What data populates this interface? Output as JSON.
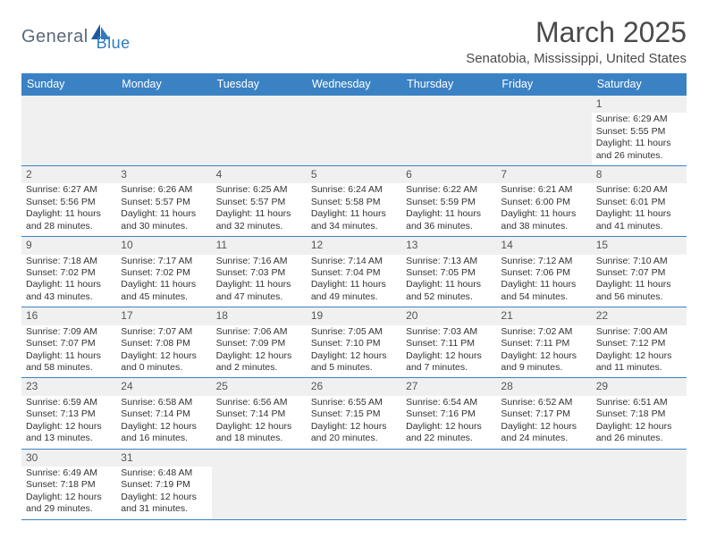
{
  "logo": {
    "text1": "General",
    "text2": "Blue"
  },
  "title": "March 2025",
  "location": "Senatobia, Mississippi, United States",
  "colors": {
    "header_bg": "#3b82c4",
    "header_text": "#ffffff",
    "border": "#3b82c4",
    "blank_bg": "#f0f0f0",
    "text": "#333333",
    "title_text": "#4a4a4a",
    "logo_gray": "#5a6a78",
    "logo_blue": "#2f7ac0"
  },
  "weekdays": [
    "Sunday",
    "Monday",
    "Tuesday",
    "Wednesday",
    "Thursday",
    "Friday",
    "Saturday"
  ],
  "weeks": [
    [
      null,
      null,
      null,
      null,
      null,
      null,
      {
        "n": "1",
        "sr": "6:29 AM",
        "ss": "5:55 PM",
        "dl": "11 hours and 26 minutes."
      }
    ],
    [
      {
        "n": "2",
        "sr": "6:27 AM",
        "ss": "5:56 PM",
        "dl": "11 hours and 28 minutes."
      },
      {
        "n": "3",
        "sr": "6:26 AM",
        "ss": "5:57 PM",
        "dl": "11 hours and 30 minutes."
      },
      {
        "n": "4",
        "sr": "6:25 AM",
        "ss": "5:57 PM",
        "dl": "11 hours and 32 minutes."
      },
      {
        "n": "5",
        "sr": "6:24 AM",
        "ss": "5:58 PM",
        "dl": "11 hours and 34 minutes."
      },
      {
        "n": "6",
        "sr": "6:22 AM",
        "ss": "5:59 PM",
        "dl": "11 hours and 36 minutes."
      },
      {
        "n": "7",
        "sr": "6:21 AM",
        "ss": "6:00 PM",
        "dl": "11 hours and 38 minutes."
      },
      {
        "n": "8",
        "sr": "6:20 AM",
        "ss": "6:01 PM",
        "dl": "11 hours and 41 minutes."
      }
    ],
    [
      {
        "n": "9",
        "sr": "7:18 AM",
        "ss": "7:02 PM",
        "dl": "11 hours and 43 minutes."
      },
      {
        "n": "10",
        "sr": "7:17 AM",
        "ss": "7:02 PM",
        "dl": "11 hours and 45 minutes."
      },
      {
        "n": "11",
        "sr": "7:16 AM",
        "ss": "7:03 PM",
        "dl": "11 hours and 47 minutes."
      },
      {
        "n": "12",
        "sr": "7:14 AM",
        "ss": "7:04 PM",
        "dl": "11 hours and 49 minutes."
      },
      {
        "n": "13",
        "sr": "7:13 AM",
        "ss": "7:05 PM",
        "dl": "11 hours and 52 minutes."
      },
      {
        "n": "14",
        "sr": "7:12 AM",
        "ss": "7:06 PM",
        "dl": "11 hours and 54 minutes."
      },
      {
        "n": "15",
        "sr": "7:10 AM",
        "ss": "7:07 PM",
        "dl": "11 hours and 56 minutes."
      }
    ],
    [
      {
        "n": "16",
        "sr": "7:09 AM",
        "ss": "7:07 PM",
        "dl": "11 hours and 58 minutes."
      },
      {
        "n": "17",
        "sr": "7:07 AM",
        "ss": "7:08 PM",
        "dl": "12 hours and 0 minutes."
      },
      {
        "n": "18",
        "sr": "7:06 AM",
        "ss": "7:09 PM",
        "dl": "12 hours and 2 minutes."
      },
      {
        "n": "19",
        "sr": "7:05 AM",
        "ss": "7:10 PM",
        "dl": "12 hours and 5 minutes."
      },
      {
        "n": "20",
        "sr": "7:03 AM",
        "ss": "7:11 PM",
        "dl": "12 hours and 7 minutes."
      },
      {
        "n": "21",
        "sr": "7:02 AM",
        "ss": "7:11 PM",
        "dl": "12 hours and 9 minutes."
      },
      {
        "n": "22",
        "sr": "7:00 AM",
        "ss": "7:12 PM",
        "dl": "12 hours and 11 minutes."
      }
    ],
    [
      {
        "n": "23",
        "sr": "6:59 AM",
        "ss": "7:13 PM",
        "dl": "12 hours and 13 minutes."
      },
      {
        "n": "24",
        "sr": "6:58 AM",
        "ss": "7:14 PM",
        "dl": "12 hours and 16 minutes."
      },
      {
        "n": "25",
        "sr": "6:56 AM",
        "ss": "7:14 PM",
        "dl": "12 hours and 18 minutes."
      },
      {
        "n": "26",
        "sr": "6:55 AM",
        "ss": "7:15 PM",
        "dl": "12 hours and 20 minutes."
      },
      {
        "n": "27",
        "sr": "6:54 AM",
        "ss": "7:16 PM",
        "dl": "12 hours and 22 minutes."
      },
      {
        "n": "28",
        "sr": "6:52 AM",
        "ss": "7:17 PM",
        "dl": "12 hours and 24 minutes."
      },
      {
        "n": "29",
        "sr": "6:51 AM",
        "ss": "7:18 PM",
        "dl": "12 hours and 26 minutes."
      }
    ],
    [
      {
        "n": "30",
        "sr": "6:49 AM",
        "ss": "7:18 PM",
        "dl": "12 hours and 29 minutes."
      },
      {
        "n": "31",
        "sr": "6:48 AM",
        "ss": "7:19 PM",
        "dl": "12 hours and 31 minutes."
      },
      null,
      null,
      null,
      null,
      null
    ]
  ],
  "labels": {
    "sunrise": "Sunrise:",
    "sunset": "Sunset:",
    "daylight": "Daylight:"
  }
}
